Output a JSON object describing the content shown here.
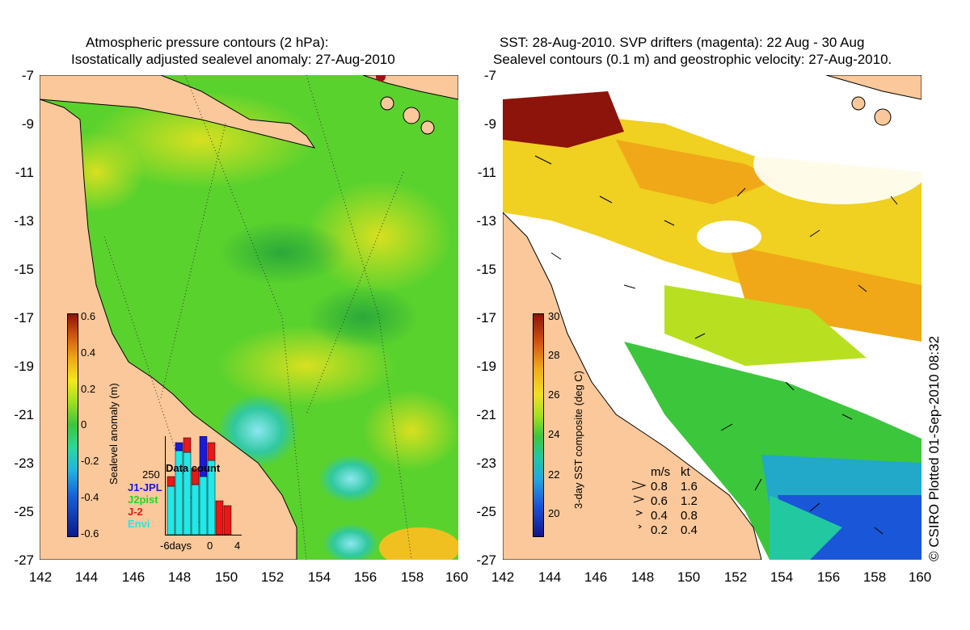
{
  "left_panel": {
    "title_line1": "Atmospheric pressure contours (2 hPa):",
    "title_line2": "Isostatically adjusted sealevel anomaly: 27-Aug-2010",
    "colorbar": {
      "label": "Sealevel anomaly (m)",
      "ticks": [
        "0.6",
        "0.4",
        "0.2",
        "0",
        "-0.2",
        "-0.4",
        "-0.6"
      ],
      "colors": [
        "#0b1a8c",
        "#1560d8",
        "#22b5e0",
        "#2bd89a",
        "#3cc63c",
        "#9ade20",
        "#f2e820",
        "#f0a818",
        "#d05a10",
        "#8c140a"
      ]
    },
    "inset": {
      "title": "Data count",
      "count": "250",
      "legend": [
        {
          "label": "J1-JPL",
          "color": "#1a1ad8"
        },
        {
          "label": "J2pist",
          "color": "#22d822"
        },
        {
          "label": "J-2",
          "color": "#e81818"
        },
        {
          "label": "Envi",
          "color": "#22e8e8"
        }
      ],
      "xlabels": [
        "-6days",
        "0",
        "4"
      ]
    }
  },
  "right_panel": {
    "title_line1": "SST: 28-Aug-2010. SVP drifters (magenta): 22 Aug - 30 Aug",
    "title_line2": "Sealevel contours (0.1 m) and geostrophic velocity: 27-Aug-2010.",
    "colorbar": {
      "label": "3-day SST composite (deg C)",
      "ticks": [
        "30",
        "28",
        "26",
        "24",
        "22",
        "20"
      ],
      "colors": [
        "#10148c",
        "#1a56d8",
        "#22a8e0",
        "#22c8a0",
        "#3cc83c",
        "#a0e020",
        "#f0e020",
        "#f0a818",
        "#d05010",
        "#8c140a"
      ]
    },
    "velocity_legend": {
      "header_ms": "m/s",
      "header_kt": "kt",
      "rows": [
        {
          "ms": "0.8",
          "kt": "1.6"
        },
        {
          "ms": "0.6",
          "kt": "1.2"
        },
        {
          "ms": "0.4",
          "kt": "0.8"
        },
        {
          "ms": "0.2",
          "kt": "0.4"
        }
      ]
    }
  },
  "axes": {
    "y_ticks": [
      "-7",
      "-9",
      "-11",
      "-13",
      "-15",
      "-17",
      "-19",
      "-21",
      "-23",
      "-25",
      "-27"
    ],
    "x_ticks": [
      "142",
      "144",
      "146",
      "148",
      "150",
      "152",
      "154",
      "156",
      "158",
      "160"
    ]
  },
  "copyright": "© CSIRO Plotted 01-Sep-2010 08:32",
  "colors": {
    "land": "#fac89a",
    "sea_green": "#4ec83a",
    "cloud": "#ffffff"
  }
}
